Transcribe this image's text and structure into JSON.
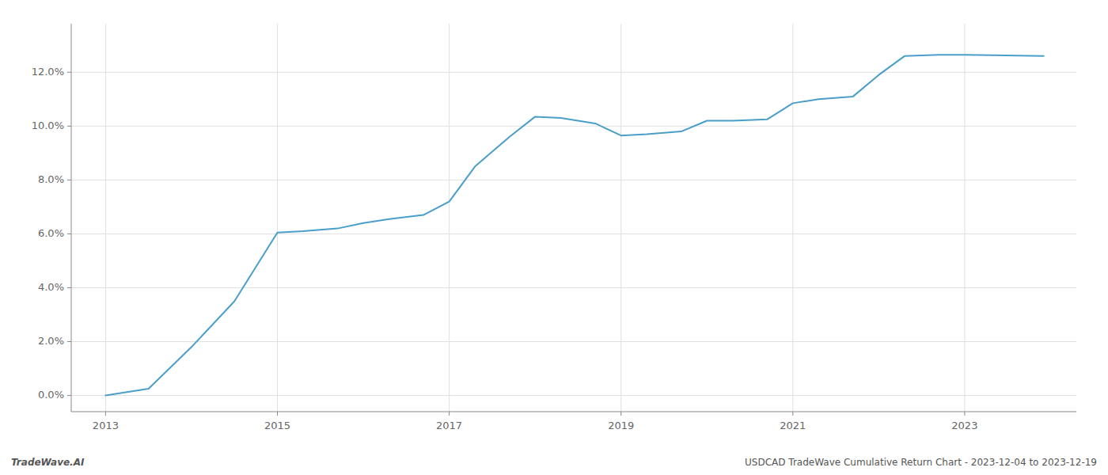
{
  "chart_data": {
    "type": "line",
    "x": [
      2013.0,
      2013.5,
      2014.0,
      2014.5,
      2015.0,
      2015.3,
      2015.7,
      2016.0,
      2016.3,
      2016.7,
      2017.0,
      2017.3,
      2017.7,
      2018.0,
      2018.3,
      2018.7,
      2019.0,
      2019.3,
      2019.7,
      2020.0,
      2020.3,
      2020.7,
      2021.0,
      2021.3,
      2021.7,
      2022.0,
      2022.3,
      2022.7,
      2023.0,
      2023.92
    ],
    "values": [
      0.0,
      0.25,
      1.8,
      3.5,
      6.05,
      6.1,
      6.2,
      6.4,
      6.55,
      6.7,
      7.2,
      8.5,
      9.6,
      10.35,
      10.3,
      10.1,
      9.65,
      9.7,
      9.8,
      10.2,
      10.2,
      10.25,
      10.85,
      11.0,
      11.1,
      11.9,
      12.6,
      12.65,
      12.65,
      12.6
    ],
    "color": "#4a9eca",
    "xlim": [
      2012.6,
      2024.3
    ],
    "xticks": [
      2013,
      2015,
      2017,
      2019,
      2021,
      2023
    ],
    "ylim": [
      -0.6,
      13.8
    ],
    "yticks": [
      {
        "value": 0.0,
        "label": "0.0%"
      },
      {
        "value": 2.0,
        "label": "2.0%"
      },
      {
        "value": 4.0,
        "label": "4.0%"
      },
      {
        "value": 6.0,
        "label": "6.0%"
      },
      {
        "value": 8.0,
        "label": "8.0%"
      },
      {
        "value": 10.0,
        "label": "10.0%"
      },
      {
        "value": 12.0,
        "label": "12.0%"
      }
    ],
    "grid": true,
    "annotations": [
      "TradeWave.AI",
      "USDCAD TradeWave Cumulative Return Chart - 2023-12-04 to 2023-12-19"
    ]
  }
}
